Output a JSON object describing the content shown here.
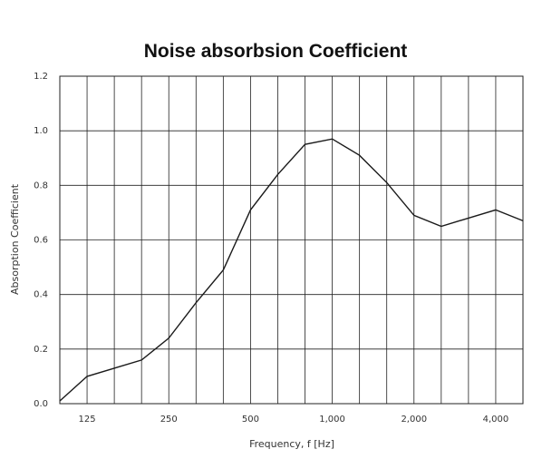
{
  "chart_data": {
    "type": "line",
    "title": "Noise absorbsion Coefficient",
    "xlabel": "Frequency, f [Hz]",
    "ylabel": "Absorption Coefficient",
    "ylim": [
      0,
      1.2
    ],
    "yticks": [
      "0.0",
      "0.2",
      "0.4",
      "0.6",
      "0.8",
      "1.0",
      "1.2"
    ],
    "x_scale": "log (one-third octave bands)",
    "xlim": [
      100,
      5000
    ],
    "xtick_values": [
      125,
      250,
      500,
      1000,
      2000,
      4000
    ],
    "xtick_labels": [
      "125",
      "250",
      "500",
      "1,000",
      "2,000",
      "4,000"
    ],
    "grid": true,
    "series": [
      {
        "x": [
          100,
          125,
          160,
          200,
          250,
          315,
          400,
          500,
          630,
          800,
          1000,
          1250,
          1600,
          2000,
          2500,
          3150,
          4000,
          5000
        ],
        "values": [
          0.01,
          0.1,
          0.13,
          0.16,
          0.24,
          0.37,
          0.49,
          0.71,
          0.84,
          0.95,
          0.97,
          0.91,
          0.81,
          0.69,
          0.65,
          0.68,
          0.71,
          0.67
        ]
      }
    ],
    "colors": {
      "line": "#1a1a1a",
      "grid": "#222222"
    }
  }
}
